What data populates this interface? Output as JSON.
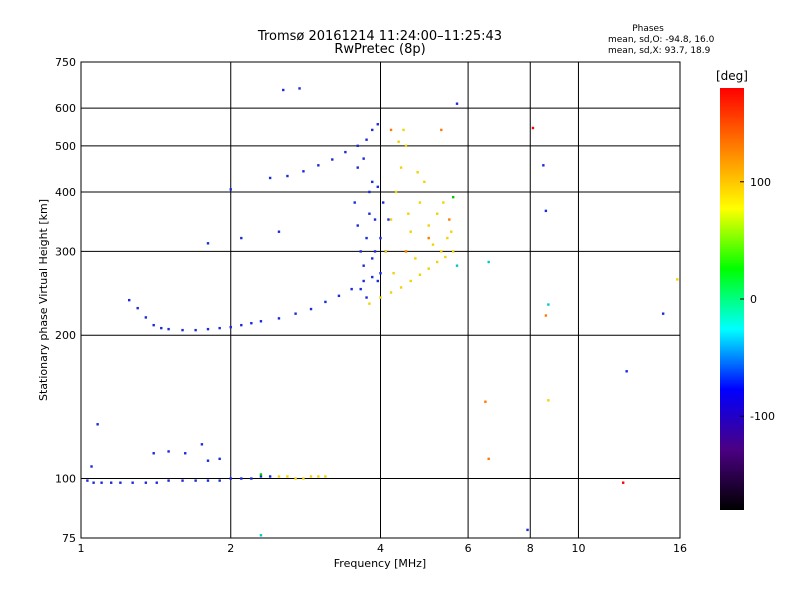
{
  "chart_data": {
    "type": "scatter",
    "title": "Tromsø 20161214 11:24:00–11:25:43",
    "subtitle": "RwPretec (8p)",
    "xlabel": "Frequency [MHz]",
    "ylabel": "Stationary phase Virtual Height [km]",
    "x_scale": "log",
    "y_scale": "log",
    "xlim": [
      1,
      16
    ],
    "ylim": [
      75,
      750
    ],
    "x_ticks": [
      1,
      2,
      4,
      6,
      8,
      10,
      16
    ],
    "y_ticks": [
      75,
      100,
      200,
      300,
      400,
      500,
      600,
      750
    ],
    "grid": true,
    "phase_stats": {
      "heading": "Phases",
      "line_o": "mean, sd,O: -94.8, 16.0",
      "line_x": "mean, sd,X:  93.7, 18.9"
    },
    "colorbar": {
      "label": "[deg]",
      "range": [
        -180,
        180
      ],
      "ticks": [
        100,
        0,
        -100
      ],
      "colors": [
        "#ff0000",
        "#ff8000",
        "#ffff00",
        "#00ff00",
        "#00ffff",
        "#0000ff",
        "#4b0082",
        "#000000"
      ]
    },
    "series": [
      {
        "color": "#1a2bdc",
        "phase_deg": -100,
        "points": [
          [
            1.03,
            99
          ],
          [
            1.06,
            98
          ],
          [
            1.1,
            98
          ],
          [
            1.15,
            98
          ],
          [
            1.2,
            98
          ],
          [
            1.27,
            98
          ],
          [
            1.35,
            98
          ],
          [
            1.42,
            98
          ],
          [
            1.5,
            99
          ],
          [
            1.6,
            99
          ],
          [
            1.7,
            99
          ],
          [
            1.8,
            99
          ],
          [
            1.9,
            99
          ],
          [
            2.0,
            100
          ],
          [
            2.1,
            100
          ],
          [
            2.2,
            100
          ],
          [
            2.3,
            101
          ],
          [
            2.4,
            101
          ],
          [
            1.05,
            106
          ],
          [
            1.08,
            130
          ],
          [
            1.4,
            113
          ],
          [
            1.5,
            114
          ],
          [
            1.62,
            113
          ],
          [
            1.75,
            118
          ],
          [
            1.8,
            109
          ],
          [
            1.9,
            110
          ],
          [
            1.25,
            237
          ],
          [
            1.3,
            228
          ],
          [
            1.35,
            218
          ],
          [
            1.4,
            210
          ],
          [
            1.45,
            207
          ],
          [
            1.5,
            206
          ],
          [
            1.6,
            205
          ],
          [
            1.7,
            205
          ],
          [
            1.8,
            206
          ],
          [
            1.9,
            207
          ],
          [
            2.0,
            208
          ],
          [
            2.1,
            210
          ],
          [
            2.2,
            212
          ],
          [
            2.3,
            214
          ],
          [
            2.5,
            217
          ],
          [
            2.7,
            222
          ],
          [
            2.9,
            227
          ],
          [
            3.1,
            235
          ],
          [
            3.3,
            242
          ],
          [
            3.5,
            250
          ],
          [
            3.7,
            260
          ],
          [
            3.85,
            265
          ],
          [
            1.8,
            312
          ],
          [
            2.1,
            320
          ],
          [
            2.5,
            330
          ],
          [
            2.0,
            405
          ],
          [
            2.4,
            428
          ],
          [
            2.6,
            432
          ],
          [
            2.8,
            442
          ],
          [
            3.0,
            455
          ],
          [
            3.2,
            468
          ],
          [
            3.4,
            485
          ],
          [
            3.6,
            500
          ],
          [
            3.75,
            515
          ],
          [
            3.85,
            540
          ],
          [
            3.95,
            555
          ],
          [
            2.55,
            655
          ],
          [
            2.75,
            660
          ],
          [
            5.7,
            613
          ],
          [
            3.55,
            380
          ],
          [
            3.6,
            340
          ],
          [
            3.65,
            300
          ],
          [
            3.7,
            280
          ],
          [
            3.75,
            320
          ],
          [
            3.8,
            360
          ],
          [
            3.85,
            420
          ],
          [
            3.9,
            300
          ],
          [
            3.95,
            260
          ],
          [
            4.0,
            320
          ],
          [
            4.05,
            380
          ],
          [
            3.6,
            450
          ],
          [
            3.7,
            470
          ],
          [
            3.8,
            400
          ],
          [
            3.9,
            350
          ],
          [
            3.65,
            250
          ],
          [
            3.75,
            240
          ],
          [
            3.85,
            290
          ],
          [
            3.95,
            410
          ],
          [
            4.0,
            270
          ],
          [
            4.1,
            300
          ],
          [
            4.15,
            350
          ],
          [
            7.9,
            78
          ],
          [
            8.5,
            455
          ],
          [
            8.6,
            365
          ],
          [
            12.5,
            168
          ],
          [
            14.8,
            222
          ]
        ]
      },
      {
        "color": "#f2d200",
        "phase_deg": 100,
        "points": [
          [
            2.5,
            101
          ],
          [
            2.6,
            101
          ],
          [
            2.7,
            100
          ],
          [
            2.8,
            100
          ],
          [
            2.9,
            101
          ],
          [
            3.0,
            101
          ],
          [
            3.1,
            101
          ],
          [
            3.8,
            233
          ],
          [
            4.0,
            240
          ],
          [
            4.2,
            246
          ],
          [
            4.4,
            252
          ],
          [
            4.6,
            260
          ],
          [
            4.8,
            268
          ],
          [
            5.0,
            276
          ],
          [
            5.2,
            285
          ],
          [
            5.4,
            292
          ],
          [
            5.6,
            300
          ],
          [
            4.1,
            300
          ],
          [
            4.2,
            350
          ],
          [
            4.3,
            400
          ],
          [
            4.4,
            450
          ],
          [
            4.5,
            500
          ],
          [
            4.6,
            330
          ],
          [
            4.7,
            290
          ],
          [
            4.8,
            380
          ],
          [
            4.9,
            420
          ],
          [
            5.0,
            340
          ],
          [
            5.1,
            310
          ],
          [
            5.2,
            360
          ],
          [
            5.3,
            300
          ],
          [
            5.45,
            320
          ],
          [
            4.25,
            270
          ],
          [
            4.5,
            300
          ],
          [
            4.55,
            360
          ],
          [
            4.75,
            440
          ],
          [
            4.35,
            510
          ],
          [
            4.45,
            540
          ],
          [
            5.35,
            380
          ],
          [
            5.55,
            330
          ],
          [
            8.7,
            146
          ],
          [
            15.8,
            262
          ]
        ]
      },
      {
        "color": "#ff7a00",
        "phase_deg": 140,
        "points": [
          [
            4.2,
            540
          ],
          [
            4.5,
            300
          ],
          [
            5.0,
            320
          ],
          [
            5.5,
            350
          ],
          [
            6.5,
            145
          ],
          [
            6.6,
            110
          ],
          [
            8.6,
            220
          ],
          [
            5.3,
            540
          ]
        ]
      },
      {
        "color": "#ff0000",
        "phase_deg": 170,
        "points": [
          [
            8.1,
            545
          ],
          [
            12.3,
            98
          ]
        ]
      },
      {
        "color": "#00cc00",
        "phase_deg": 20,
        "points": [
          [
            2.3,
            102
          ],
          [
            5.6,
            390
          ]
        ]
      },
      {
        "color": "#00c8c8",
        "phase_deg": -40,
        "points": [
          [
            6.6,
            285
          ],
          [
            8.7,
            232
          ],
          [
            2.3,
            76
          ],
          [
            5.7,
            280
          ]
        ]
      }
    ]
  }
}
